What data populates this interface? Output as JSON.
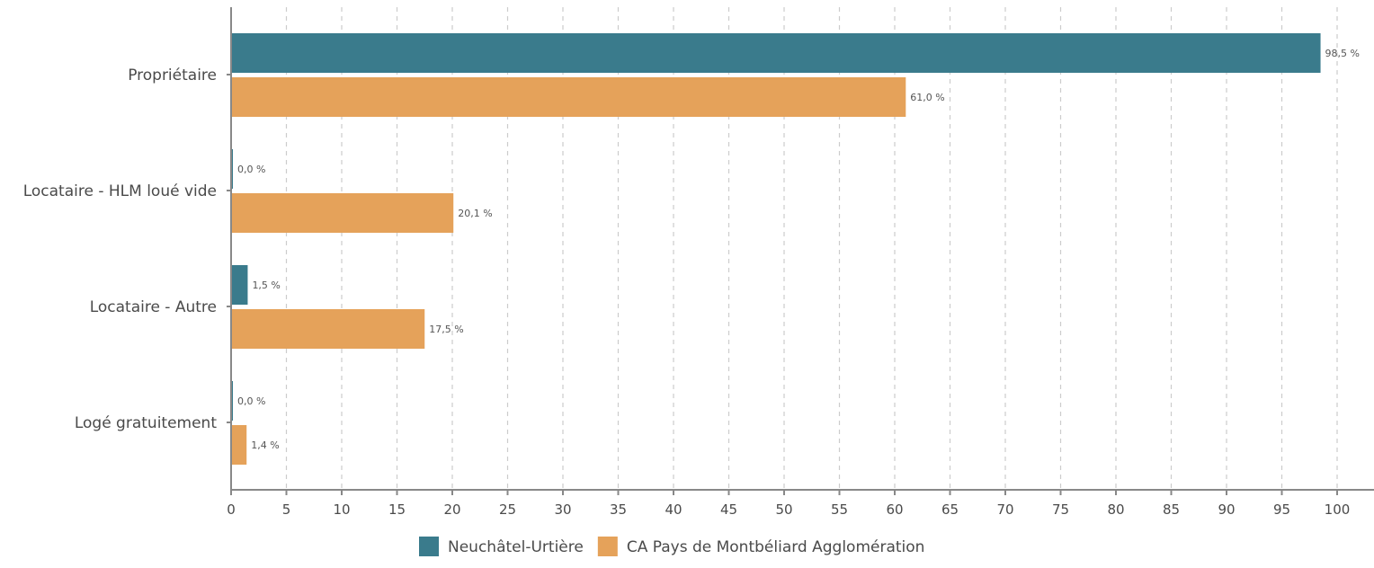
{
  "chart_data": {
    "type": "bar",
    "orientation": "horizontal",
    "categories": [
      "Propriétaire",
      "Locataire - HLM loué vide",
      "Locataire - Autre",
      "Logé gratuitement"
    ],
    "series": [
      {
        "name": "Neuchâtel-Urtière",
        "color": "#3a7b8c",
        "values": [
          98.5,
          0.0,
          1.5,
          0.0
        ],
        "labels": [
          "98,5 %",
          "0,0 %",
          "1,5 %",
          "0,0 %"
        ]
      },
      {
        "name": "CA Pays de Montbéliard Agglomération",
        "color": "#e5a25a",
        "values": [
          61.0,
          20.1,
          17.5,
          1.4
        ],
        "labels": [
          "61,0 %",
          "20,1 %",
          "17,5 %",
          "1,4 %"
        ]
      }
    ],
    "xlim": [
      0,
      100
    ],
    "xticks": [
      0,
      5,
      10,
      15,
      20,
      25,
      30,
      35,
      40,
      45,
      50,
      55,
      60,
      65,
      70,
      75,
      80,
      85,
      90,
      95,
      100
    ],
    "xtick_labels": [
      "0",
      "5",
      "10",
      "15",
      "20",
      "25",
      "30",
      "35",
      "40",
      "45",
      "50",
      "55",
      "60",
      "65",
      "70",
      "75",
      "80",
      "85",
      "90",
      "95",
      "100"
    ],
    "grid": "vertical-dashed",
    "legend_position": "bottom-center",
    "axis_color": "#888888",
    "grid_color": "#cccccc"
  }
}
